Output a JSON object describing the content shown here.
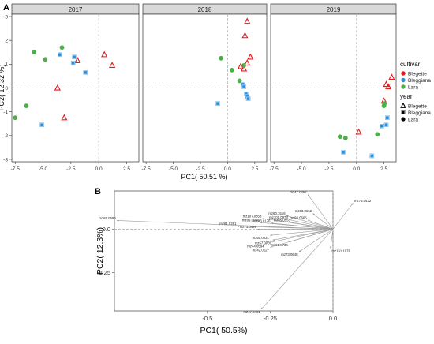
{
  "chart_data": [
    {
      "type": "scatter",
      "panel_label": "A",
      "xlabel": "PC1( 50.51 %)",
      "ylabel": "PC2( 12.32 %)",
      "xlim": [
        -7.8,
        3.6
      ],
      "ylim": [
        -3.1,
        3.1
      ],
      "x_ticks": [
        -7.5,
        -5.0,
        -2.5,
        0.0,
        2.5
      ],
      "x_tick_labels": [
        "-7.5",
        "-5.0",
        "-2.5",
        "0.0",
        "2.5"
      ],
      "y_ticks": [
        -3,
        -2,
        -1,
        0,
        1,
        2,
        3
      ],
      "y_tick_labels": [
        "-3",
        "-2",
        "-1",
        "0",
        "1",
        "2",
        "3"
      ],
      "facets": [
        "2017",
        "2018",
        "2019"
      ],
      "legend": {
        "placement": "right",
        "color_title": "cultivar",
        "shape_title": "year",
        "entries": [
          "Blegette",
          "Bleggiana",
          "Lara"
        ],
        "colors": [
          "#e41a1c",
          "#2e8fd8",
          "#4daf4a"
        ],
        "shapes": [
          "triangle",
          "square",
          "circle"
        ]
      },
      "series": [
        {
          "name": "Blegette",
          "points": [
            {
              "facet": "2017",
              "x": -3.7,
              "y": 0.0
            },
            {
              "facet": "2017",
              "x": -3.1,
              "y": -1.25
            },
            {
              "facet": "2017",
              "x": -1.9,
              "y": 1.15
            },
            {
              "facet": "2017",
              "x": 0.5,
              "y": 1.4
            },
            {
              "facet": "2017",
              "x": 1.2,
              "y": 0.95
            },
            {
              "facet": "2018",
              "x": 1.8,
              "y": 2.8
            },
            {
              "facet": "2018",
              "x": 1.6,
              "y": 2.2
            },
            {
              "facet": "2018",
              "x": 2.1,
              "y": 1.3
            },
            {
              "facet": "2018",
              "x": 1.8,
              "y": 1.05
            },
            {
              "facet": "2018",
              "x": 1.2,
              "y": 0.9
            },
            {
              "facet": "2018",
              "x": 1.5,
              "y": 0.8
            },
            {
              "facet": "2019",
              "x": 0.2,
              "y": -1.85
            },
            {
              "facet": "2019",
              "x": 2.5,
              "y": -0.55
            },
            {
              "facet": "2019",
              "x": 2.7,
              "y": 0.15
            },
            {
              "facet": "2019",
              "x": 2.9,
              "y": 0.05
            },
            {
              "facet": "2019",
              "x": 3.2,
              "y": 0.45
            }
          ]
        },
        {
          "name": "Bleggiana",
          "points": [
            {
              "facet": "2017",
              "x": -5.1,
              "y": -1.55
            },
            {
              "facet": "2017",
              "x": -3.5,
              "y": 1.4
            },
            {
              "facet": "2017",
              "x": -2.3,
              "y": 1.05
            },
            {
              "facet": "2017",
              "x": -2.2,
              "y": 1.3
            },
            {
              "facet": "2017",
              "x": -1.2,
              "y": 0.65
            },
            {
              "facet": "2018",
              "x": -0.9,
              "y": -0.65
            },
            {
              "facet": "2018",
              "x": 1.4,
              "y": 0.15
            },
            {
              "facet": "2018",
              "x": 1.5,
              "y": 0.05
            },
            {
              "facet": "2018",
              "x": 1.7,
              "y": -0.25
            },
            {
              "facet": "2018",
              "x": 1.8,
              "y": -0.35
            },
            {
              "facet": "2018",
              "x": 1.9,
              "y": -0.45
            },
            {
              "facet": "2019",
              "x": -1.2,
              "y": -2.7
            },
            {
              "facet": "2019",
              "x": 1.4,
              "y": -2.85
            },
            {
              "facet": "2019",
              "x": 2.3,
              "y": -1.6
            },
            {
              "facet": "2019",
              "x": 2.7,
              "y": -1.55
            },
            {
              "facet": "2019",
              "x": 2.8,
              "y": -1.25
            }
          ]
        },
        {
          "name": "Lara",
          "points": [
            {
              "facet": "2017",
              "x": -7.5,
              "y": -1.25
            },
            {
              "facet": "2017",
              "x": -6.5,
              "y": -0.75
            },
            {
              "facet": "2017",
              "x": -5.8,
              "y": 1.5
            },
            {
              "facet": "2017",
              "x": -4.8,
              "y": 1.2
            },
            {
              "facet": "2017",
              "x": -3.3,
              "y": 1.7
            },
            {
              "facet": "2018",
              "x": -0.6,
              "y": 1.25
            },
            {
              "facet": "2018",
              "x": 0.4,
              "y": 0.75
            },
            {
              "facet": "2018",
              "x": 1.5,
              "y": 0.95
            },
            {
              "facet": "2018",
              "x": 1.1,
              "y": 0.3
            },
            {
              "facet": "2019",
              "x": -1.5,
              "y": -2.05
            },
            {
              "facet": "2019",
              "x": -1.0,
              "y": -2.1
            },
            {
              "facet": "2019",
              "x": 1.9,
              "y": -1.95
            },
            {
              "facet": "2019",
              "x": 2.5,
              "y": -0.75
            },
            {
              "facet": "2019",
              "x": 2.55,
              "y": -0.65
            }
          ]
        }
      ]
    },
    {
      "type": "biplot",
      "panel_label": "B",
      "xlabel": "PC1( 50.5%)",
      "ylabel": "PC2( 12.3%)",
      "xlim": [
        -0.87,
        0.0
      ],
      "ylim": [
        -0.47,
        0.22
      ],
      "x_ticks": [
        -0.5,
        -0.25,
        0.0
      ],
      "x_tick_labels": [
        "-0.5",
        "-0.25",
        "0.0"
      ],
      "y_ticks": [
        -0.25,
        0.0
      ],
      "y_tick_labels": [
        "-0.25",
        "0.0"
      ],
      "loadings": [
        {
          "label": "mz47.0267",
          "x": -0.1,
          "y": 0.2
        },
        {
          "label": "mz75.0432",
          "x": 0.08,
          "y": 0.15
        },
        {
          "label": "mz63.0662",
          "x": -0.08,
          "y": 0.09
        },
        {
          "label": "mz60.1516",
          "x": -0.185,
          "y": 0.078
        },
        {
          "label": "mz107.0858",
          "x": -0.28,
          "y": 0.062
        },
        {
          "label": "mz101.0973",
          "x": -0.175,
          "y": 0.055
        },
        {
          "label": "mz93.0665",
          "x": -0.1,
          "y": 0.052
        },
        {
          "label": "mz43.0176",
          "x": -0.245,
          "y": 0.035
        },
        {
          "label": "mz89.0590",
          "x": -0.29,
          "y": 0.038
        },
        {
          "label": "mz85.0553",
          "x": -0.165,
          "y": 0.038
        },
        {
          "label": "mz69.0590",
          "x": -0.86,
          "y": 0.05
        },
        {
          "label": "mz61.0281",
          "x": -0.38,
          "y": 0.017
        },
        {
          "label": "mz71.0499",
          "x": -0.3,
          "y": 0.0
        },
        {
          "label": "mz60.0031",
          "x": -0.25,
          "y": -0.035
        },
        {
          "label": "mz57.0707",
          "x": -0.24,
          "y": -0.063
        },
        {
          "label": "mz91.0734",
          "x": -0.175,
          "y": -0.074
        },
        {
          "label": "mz44.0594",
          "x": -0.27,
          "y": -0.082
        },
        {
          "label": "mz131.1076",
          "x": -0.01,
          "y": -0.11
        },
        {
          "label": "mz42.0127",
          "x": -0.25,
          "y": -0.104
        },
        {
          "label": "mz73.0648",
          "x": -0.135,
          "y": -0.13
        },
        {
          "label": "mz47.0491",
          "x": -0.285,
          "y": -0.46
        }
      ]
    }
  ]
}
